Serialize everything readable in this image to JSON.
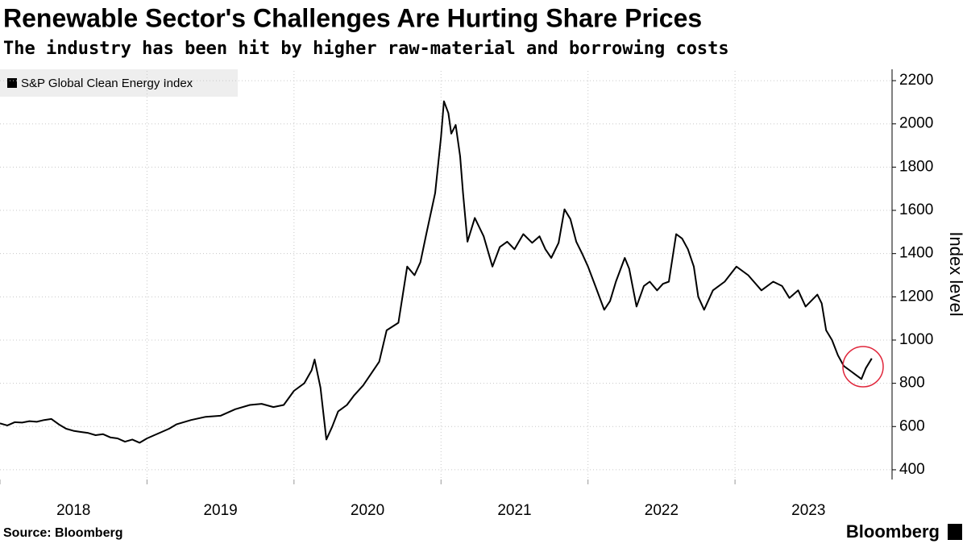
{
  "chart_data": {
    "type": "line",
    "title": "Renewable Sector's Challenges Are Hurting Share Prices",
    "subtitle": "The industry has been hit by higher raw-material and borrowing costs",
    "y_label": "Index level",
    "source": "Source: Bloomberg",
    "brand": "Bloomberg",
    "xlim": [
      2018,
      2024.03
    ],
    "ylim": [
      355,
      2245
    ],
    "yticks": [
      400,
      600,
      800,
      1000,
      1200,
      1400,
      1600,
      1800,
      2000,
      2200
    ],
    "xticks": [
      2018,
      2019,
      2020,
      2021,
      2022,
      2023
    ],
    "grid": true,
    "legend": "top-left",
    "x": [
      2018.0,
      2018.05,
      2018.1,
      2018.15,
      2018.2,
      2018.25,
      2018.3,
      2018.35,
      2018.4,
      2018.45,
      2018.5,
      2018.55,
      2018.6,
      2018.65,
      2018.7,
      2018.75,
      2018.8,
      2018.85,
      2018.9,
      2018.95,
      2019.0,
      2019.05,
      2019.1,
      2019.15,
      2019.2,
      2019.3,
      2019.4,
      2019.5,
      2019.6,
      2019.7,
      2019.78,
      2019.86,
      2019.93,
      2020.0,
      2020.07,
      2020.12,
      2020.14,
      2020.18,
      2020.22,
      2020.26,
      2020.3,
      2020.36,
      2020.41,
      2020.47,
      2020.52,
      2020.58,
      2020.63,
      2020.71,
      2020.77,
      2020.82,
      2020.86,
      2020.9,
      2020.96,
      2021.0,
      2021.02,
      2021.05,
      2021.07,
      2021.1,
      2021.13,
      2021.15,
      2021.18,
      2021.23,
      2021.29,
      2021.35,
      2021.4,
      2021.45,
      2021.5,
      2021.56,
      2021.62,
      2021.67,
      2021.71,
      2021.75,
      2021.8,
      2021.84,
      2021.88,
      2021.92,
      2021.96,
      2022.0,
      2022.05,
      2022.11,
      2022.15,
      2022.19,
      2022.25,
      2022.28,
      2022.33,
      2022.38,
      2022.42,
      2022.47,
      2022.51,
      2022.55,
      2022.6,
      2022.64,
      2022.68,
      2022.72,
      2022.75,
      2022.79,
      2022.85,
      2022.93,
      2023.01,
      2023.09,
      2023.18,
      2023.26,
      2023.32,
      2023.37,
      2023.43,
      2023.48,
      2023.56,
      2023.59,
      2023.62,
      2023.66,
      2023.7,
      2023.74,
      2023.78,
      2023.82,
      2023.86,
      2023.89,
      2023.93
    ],
    "series": [
      {
        "name": "S&P Global Clean Energy Index",
        "color": "#000000",
        "values": [
          615,
          605,
          620,
          618,
          625,
          622,
          630,
          635,
          610,
          590,
          580,
          575,
          570,
          560,
          565,
          550,
          545,
          530,
          540,
          525,
          545,
          560,
          575,
          590,
          610,
          630,
          645,
          650,
          680,
          700,
          705,
          690,
          700,
          765,
          800,
          860,
          910,
          780,
          540,
          600,
          670,
          700,
          745,
          790,
          840,
          900,
          1045,
          1080,
          1340,
          1300,
          1360,
          1490,
          1680,
          1940,
          2105,
          2050,
          1955,
          1995,
          1850,
          1680,
          1455,
          1565,
          1480,
          1340,
          1430,
          1455,
          1420,
          1490,
          1450,
          1480,
          1420,
          1380,
          1450,
          1605,
          1560,
          1455,
          1400,
          1340,
          1250,
          1140,
          1180,
          1270,
          1380,
          1330,
          1155,
          1250,
          1270,
          1230,
          1260,
          1270,
          1490,
          1470,
          1420,
          1340,
          1200,
          1140,
          1230,
          1270,
          1340,
          1300,
          1230,
          1270,
          1250,
          1195,
          1230,
          1155,
          1210,
          1170,
          1045,
          1000,
          930,
          880,
          860,
          840,
          820,
          870,
          915
        ]
      }
    ]
  }
}
